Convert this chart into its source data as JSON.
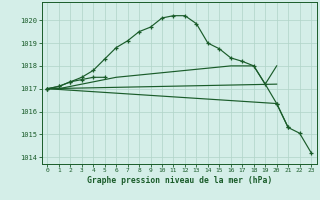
{
  "bg_color": "#d4eee8",
  "grid_color": "#b0d4c8",
  "line_color": "#1a5c2a",
  "tick_color": "#1a5c2a",
  "xlabel": "Graphe pression niveau de la mer (hPa)",
  "ylim": [
    1013.7,
    1020.8
  ],
  "xlim": [
    -0.5,
    23.5
  ],
  "yticks": [
    1014,
    1015,
    1016,
    1017,
    1018,
    1019,
    1020
  ],
  "xticks": [
    0,
    1,
    2,
    3,
    4,
    5,
    6,
    7,
    8,
    9,
    10,
    11,
    12,
    13,
    14,
    15,
    16,
    17,
    18,
    19,
    20,
    21,
    22,
    23
  ],
  "lines": [
    {
      "x": [
        0,
        1,
        2,
        3,
        4,
        5,
        6,
        7,
        8,
        9,
        10,
        11,
        12,
        13,
        14,
        15,
        16,
        17,
        18,
        19,
        20,
        21
      ],
      "y": [
        1017.0,
        1017.1,
        1017.3,
        1017.5,
        1017.8,
        1018.3,
        1018.8,
        1019.1,
        1019.5,
        1019.7,
        1020.1,
        1020.2,
        1020.2,
        1019.85,
        1019.0,
        1018.75,
        1018.35,
        1018.2,
        1018.0,
        1017.2,
        1016.35,
        1015.3
      ],
      "marker": true
    },
    {
      "x": [
        0,
        1,
        2,
        3,
        4,
        5,
        6,
        7,
        8,
        9,
        10,
        11,
        12,
        13,
        14,
        15,
        16,
        17,
        18,
        19,
        20
      ],
      "y": [
        1017.0,
        1017.0,
        1017.1,
        1017.2,
        1017.3,
        1017.4,
        1017.5,
        1017.55,
        1017.6,
        1017.65,
        1017.7,
        1017.75,
        1017.8,
        1017.85,
        1017.9,
        1017.95,
        1018.0,
        1018.0,
        1018.0,
        1017.2,
        1018.0
      ],
      "marker": false
    },
    {
      "x": [
        0,
        1,
        2,
        3,
        4,
        5
      ],
      "y": [
        1017.0,
        1017.1,
        1017.3,
        1017.4,
        1017.5,
        1017.5
      ],
      "marker": true
    },
    {
      "x": [
        0,
        20,
        21,
        22,
        23
      ],
      "y": [
        1017.0,
        1016.35,
        1015.3,
        1015.05,
        1014.2
      ],
      "marker": true
    }
  ]
}
